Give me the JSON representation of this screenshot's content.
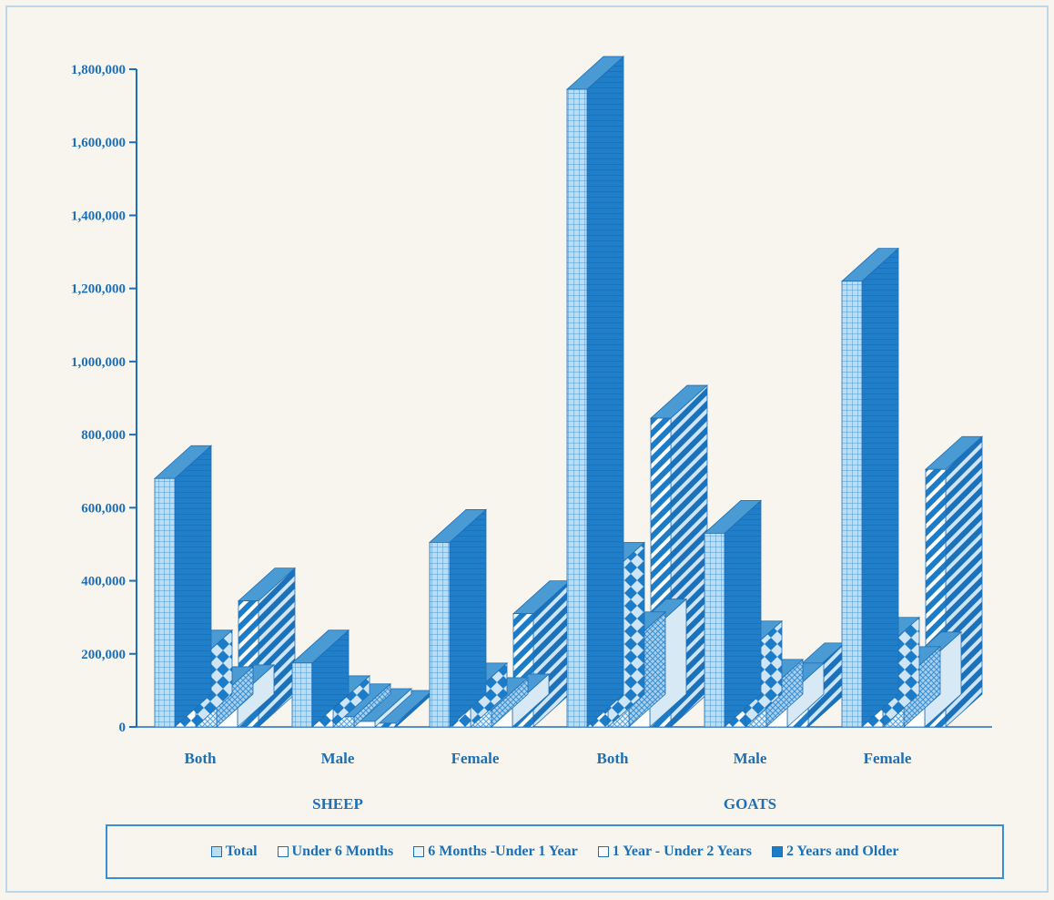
{
  "chart_data": {
    "type": "bar",
    "style": "3d-clustered",
    "categories": [
      "Both",
      "Male",
      "Female",
      "Both",
      "Male",
      "Female"
    ],
    "groups": [
      {
        "label": "SHEEP",
        "categories": [
          0,
          1,
          2
        ]
      },
      {
        "label": "GOATS",
        "categories": [
          3,
          4,
          5
        ]
      }
    ],
    "series": [
      {
        "name": "Total",
        "values": [
          680000,
          175000,
          505000,
          1745000,
          530000,
          1220000
        ],
        "pattern": "grid"
      },
      {
        "name": "Under 6 Months",
        "values": [
          175000,
          50000,
          85000,
          415000,
          200000,
          210000
        ],
        "pattern": "diamond"
      },
      {
        "name": "6 Months -Under 1 Year",
        "values": [
          75000,
          28000,
          45000,
          225000,
          95000,
          130000
        ],
        "pattern": "cross"
      },
      {
        "name": "1 Year - Under 2 Years",
        "values": [
          80000,
          15000,
          55000,
          260000,
          85000,
          170000
        ],
        "pattern": "blank"
      },
      {
        "name": "2 Years and Older",
        "values": [
          345000,
          10000,
          310000,
          845000,
          140000,
          705000
        ],
        "pattern": "stripe"
      }
    ],
    "ylim": [
      0,
      1800000
    ],
    "yticks": [
      "0",
      "200,000",
      "400,000",
      "600,000",
      "800,000",
      "1,000,000",
      "1,200,000",
      "1,400,000",
      "1,600,000",
      "1,800,000"
    ],
    "legend_position": "bottom",
    "grid": false,
    "colors": {
      "primary": "#1d6fb6",
      "light": "#b3d6f0",
      "background": "#f7f5ee"
    }
  }
}
